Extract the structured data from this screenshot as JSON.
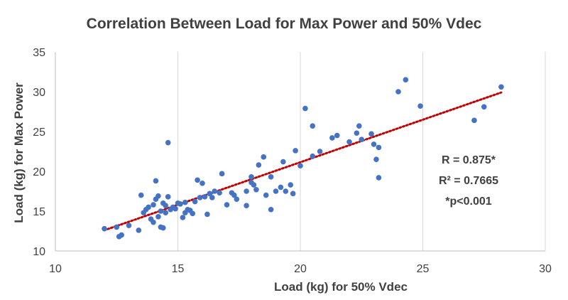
{
  "chart_data": {
    "type": "scatter",
    "title": "Correlation Between Load for Max Power and 50% Vdec",
    "xlabel": "Load (kg) for 50% Vdec",
    "ylabel": "Load (kg) for Max Power",
    "xlim": [
      10,
      30
    ],
    "ylim": [
      10,
      35
    ],
    "xticks": [
      10,
      15,
      20,
      25,
      30
    ],
    "yticks": [
      10,
      15,
      20,
      25,
      30,
      35
    ],
    "grid": "vertical",
    "colors": {
      "points": "#4472c4",
      "trendline": "#c00000",
      "grid": "#d9d9d9",
      "text": "#404040",
      "axis": "#bfbfbf"
    },
    "trendline": {
      "style": "dotted",
      "x": [
        12.0,
        28.2
      ],
      "y": [
        12.6,
        29.9
      ]
    },
    "annotations": [
      "R = 0.875*",
      "R² = 0.7665",
      "*p<0.001"
    ],
    "points": [
      [
        12.0,
        12.8
      ],
      [
        12.5,
        13.0
      ],
      [
        12.6,
        11.8
      ],
      [
        12.7,
        12.0
      ],
      [
        13.0,
        13.2
      ],
      [
        13.4,
        12.6
      ],
      [
        13.5,
        17.0
      ],
      [
        13.6,
        14.8
      ],
      [
        13.7,
        15.2
      ],
      [
        13.8,
        15.5
      ],
      [
        13.9,
        14.0
      ],
      [
        14.0,
        13.6
      ],
      [
        14.0,
        15.8
      ],
      [
        14.1,
        16.5
      ],
      [
        14.1,
        18.8
      ],
      [
        14.2,
        16.9
      ],
      [
        14.2,
        14.3
      ],
      [
        14.3,
        13.0
      ],
      [
        14.3,
        15.0
      ],
      [
        14.4,
        16.0
      ],
      [
        14.4,
        12.9
      ],
      [
        14.5,
        14.8
      ],
      [
        14.5,
        15.7
      ],
      [
        14.6,
        16.8
      ],
      [
        14.6,
        23.6
      ],
      [
        14.7,
        15.2
      ],
      [
        14.8,
        15.5
      ],
      [
        14.9,
        15.3
      ],
      [
        15.0,
        16.0
      ],
      [
        15.1,
        15.9
      ],
      [
        15.2,
        14.2
      ],
      [
        15.3,
        14.8
      ],
      [
        15.3,
        16.1
      ],
      [
        15.4,
        15.2
      ],
      [
        15.5,
        15.1
      ],
      [
        15.6,
        14.7
      ],
      [
        15.7,
        16.2
      ],
      [
        15.8,
        18.9
      ],
      [
        15.9,
        16.7
      ],
      [
        16.0,
        18.5
      ],
      [
        16.1,
        16.8
      ],
      [
        16.2,
        14.6
      ],
      [
        16.3,
        17.2
      ],
      [
        16.4,
        16.7
      ],
      [
        16.5,
        17.5
      ],
      [
        16.7,
        17.3
      ],
      [
        16.8,
        19.7
      ],
      [
        17.0,
        15.8
      ],
      [
        17.2,
        17.3
      ],
      [
        17.3,
        17.0
      ],
      [
        17.4,
        16.5
      ],
      [
        17.8,
        15.7
      ],
      [
        17.8,
        17.5
      ],
      [
        18.0,
        19.3
      ],
      [
        18.0,
        18.6
      ],
      [
        18.1,
        18.3
      ],
      [
        18.2,
        17.7
      ],
      [
        18.3,
        20.8
      ],
      [
        18.5,
        21.8
      ],
      [
        18.6,
        17.0
      ],
      [
        18.8,
        15.2
      ],
      [
        18.8,
        19.3
      ],
      [
        19.0,
        17.5
      ],
      [
        19.2,
        18.0
      ],
      [
        19.3,
        21.2
      ],
      [
        19.4,
        17.5
      ],
      [
        19.6,
        18.3
      ],
      [
        19.7,
        17.2
      ],
      [
        19.8,
        22.6
      ],
      [
        20.0,
        20.7
      ],
      [
        20.2,
        27.9
      ],
      [
        20.5,
        25.7
      ],
      [
        20.5,
        21.9
      ],
      [
        20.8,
        22.5
      ],
      [
        21.3,
        24.2
      ],
      [
        21.5,
        24.5
      ],
      [
        22.0,
        23.7
      ],
      [
        22.3,
        24.8
      ],
      [
        22.4,
        25.7
      ],
      [
        22.5,
        24.0
      ],
      [
        22.9,
        24.7
      ],
      [
        23.0,
        23.4
      ],
      [
        23.1,
        21.5
      ],
      [
        23.2,
        19.2
      ],
      [
        23.2,
        23.0
      ],
      [
        24.0,
        30.0
      ],
      [
        24.3,
        31.5
      ],
      [
        24.9,
        28.2
      ],
      [
        27.1,
        26.4
      ],
      [
        27.5,
        28.1
      ],
      [
        28.2,
        30.6
      ]
    ]
  }
}
